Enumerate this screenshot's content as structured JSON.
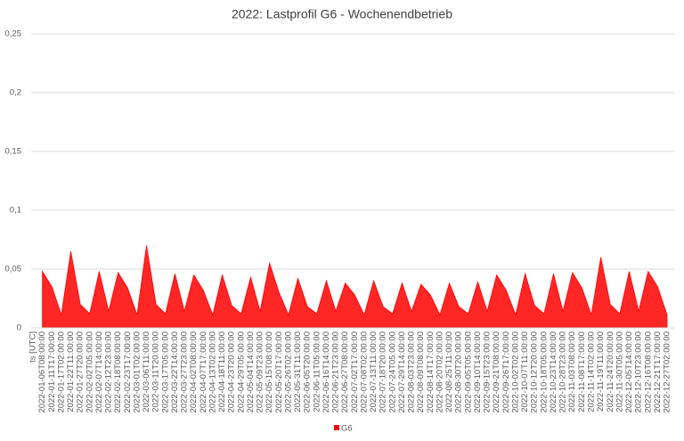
{
  "chart_data": {
    "type": "area",
    "title": "2022: Lastprofil G6 - Wochenendbetrieb",
    "categories": [
      "ts [UTC]",
      "2022-01-06T08:00:00",
      "2022-01-11T17:00:00",
      "2022-01-17T02:00:00",
      "2022-01-22T11:00:00",
      "2022-01-27T20:00:00",
      "2022-02-02T05:00:00",
      "2022-02-07T14:00:00",
      "2022-02-12T23:00:00",
      "2022-02-18T08:00:00",
      "2022-02-23T17:00:00",
      "2022-03-01T02:00:00",
      "2022-03-06T11:00:00",
      "2022-03-11T20:00:00",
      "2022-03-17T05:00:00",
      "2022-03-22T14:00:00",
      "2022-03-27T23:00:00",
      "2022-04-02T08:00:00",
      "2022-04-07T17:00:00",
      "2022-04-13T02:00:00",
      "2022-04-18T11:00:00",
      "2022-04-23T20:00:00",
      "2022-04-29T05:00:00",
      "2022-05-04T14:00:00",
      "2022-05-09T23:00:00",
      "2022-05-15T08:00:00",
      "2022-05-20T17:00:00",
      "2022-05-26T02:00:00",
      "2022-05-31T11:00:00",
      "2022-06-05T20:00:00",
      "2022-06-11T05:00:00",
      "2022-06-16T14:00:00",
      "2022-06-21T23:00:00",
      "2022-06-27T08:00:00",
      "2022-07-02T17:00:00",
      "2022-07-08T02:00:00",
      "2022-07-13T11:00:00",
      "2022-07-18T20:00:00",
      "2022-07-24T05:00:00",
      "2022-07-29T14:00:00",
      "2022-08-03T23:00:00",
      "2022-08-09T08:00:00",
      "2022-08-14T17:00:00",
      "2022-08-20T02:00:00",
      "2022-08-25T11:00:00",
      "2022-08-30T20:00:00",
      "2022-09-05T05:00:00",
      "2022-09-10T14:00:00",
      "2022-09-15T23:00:00",
      "2022-09-21T08:00:00",
      "2022-09-26T17:00:00",
      "2022-10-02T02:00:00",
      "2022-10-07T11:00:00",
      "2022-10-12T20:00:00",
      "2022-10-18T05:00:00",
      "2022-10-23T14:00:00",
      "2022-10-28T23:00:00",
      "2022-11-03T08:00:00",
      "2022-11-08T17:00:00",
      "2022-11-14T02:00:00",
      "2022-11-19T11:00:00",
      "2022-11-24T20:00:00",
      "2022-11-30T05:00:00",
      "2022-12-05T14:00:00",
      "2022-12-10T23:00:00",
      "2022-12-16T08:00:00",
      "2022-12-21T17:00:00",
      "2022-12-27T02:00:00"
    ],
    "series": [
      {
        "name": "G6",
        "color": "#ff0000",
        "values": [
          null,
          0.048,
          0.035,
          0.011,
          0.065,
          0.02,
          0.012,
          0.048,
          0.014,
          0.047,
          0.034,
          0.011,
          0.07,
          0.02,
          0.012,
          0.046,
          0.014,
          0.045,
          0.032,
          0.011,
          0.045,
          0.019,
          0.012,
          0.043,
          0.014,
          0.055,
          0.03,
          0.011,
          0.042,
          0.018,
          0.012,
          0.04,
          0.014,
          0.038,
          0.028,
          0.011,
          0.04,
          0.018,
          0.012,
          0.038,
          0.014,
          0.037,
          0.028,
          0.011,
          0.038,
          0.018,
          0.012,
          0.039,
          0.014,
          0.045,
          0.032,
          0.011,
          0.046,
          0.019,
          0.012,
          0.046,
          0.014,
          0.047,
          0.034,
          0.011,
          0.06,
          0.02,
          0.012,
          0.048,
          0.014,
          0.048,
          0.035,
          0.011
        ]
      }
    ],
    "ylim": [
      0,
      0.25
    ],
    "yticks": [
      0,
      {
        "value": 0.05,
        "label": "0,05"
      },
      {
        "value": 0.1,
        "label": "0,1"
      },
      {
        "value": 0.15,
        "label": "0,15"
      },
      {
        "value": 0.2,
        "label": "0,2"
      },
      {
        "value": 0.25,
        "label": "0,25"
      }
    ],
    "grid": true,
    "legend": "bottom"
  }
}
